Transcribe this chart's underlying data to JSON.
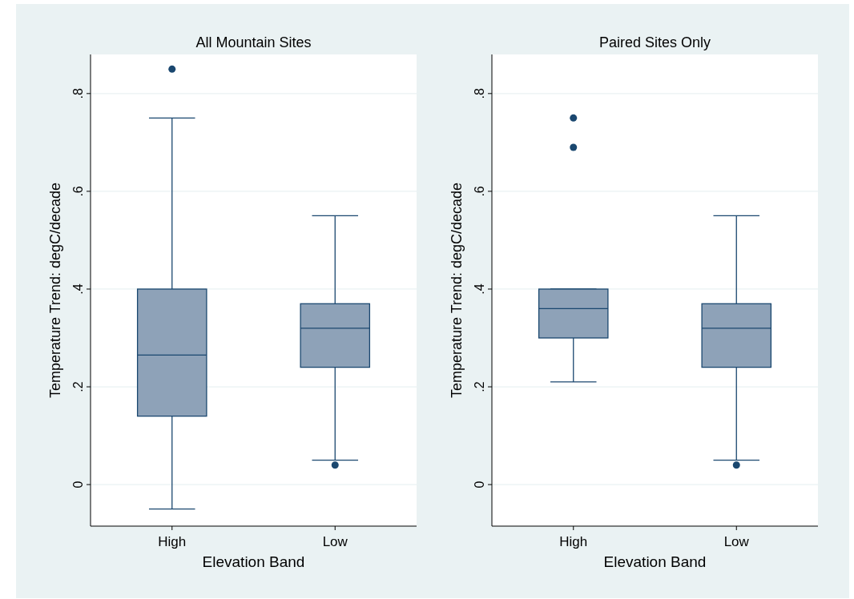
{
  "chart_data": [
    {
      "type": "box",
      "title": "All Mountain Sites",
      "xlabel": "Elevation Band",
      "ylabel": "Temperature Trend: degC/decade",
      "categories": [
        "High",
        "Low"
      ],
      "color": "#8ea2b8",
      "grid": "y",
      "ylim": [
        -0.085,
        0.88
      ],
      "yticks": [
        0,
        {
          "value": 0.2,
          "label": ".2"
        },
        {
          "value": 0.4,
          "label": ".4"
        },
        {
          "value": 0.6,
          "label": ".6"
        },
        {
          "value": 0.8,
          "label": ".8"
        }
      ],
      "boxes": [
        {
          "low": -0.05,
          "q1": 0.14,
          "median": 0.265,
          "q3": 0.4,
          "high": 0.75,
          "outliers": [
            0.85
          ]
        },
        {
          "low": 0.05,
          "q1": 0.24,
          "median": 0.32,
          "q3": 0.37,
          "high": 0.55,
          "outliers": [
            0.04
          ]
        }
      ]
    },
    {
      "type": "box",
      "title": "Paired Sites Only",
      "xlabel": "Elevation Band",
      "ylabel": "Temperature Trend: degC/decade",
      "categories": [
        "High",
        "Low"
      ],
      "color": "#8ea2b8",
      "grid": "y",
      "ylim": [
        -0.085,
        0.88
      ],
      "yticks": [
        0,
        {
          "value": 0.2,
          "label": ".2"
        },
        {
          "value": 0.4,
          "label": ".4"
        },
        {
          "value": 0.6,
          "label": ".6"
        },
        {
          "value": 0.8,
          "label": ".8"
        }
      ],
      "boxes": [
        {
          "low": 0.21,
          "q1": 0.3,
          "median": 0.36,
          "q3": 0.4,
          "high": 0.4,
          "outliers": [
            0.75,
            0.69
          ]
        },
        {
          "low": 0.05,
          "q1": 0.24,
          "median": 0.32,
          "q3": 0.37,
          "high": 0.55,
          "outliers": [
            0.04
          ]
        }
      ]
    }
  ]
}
